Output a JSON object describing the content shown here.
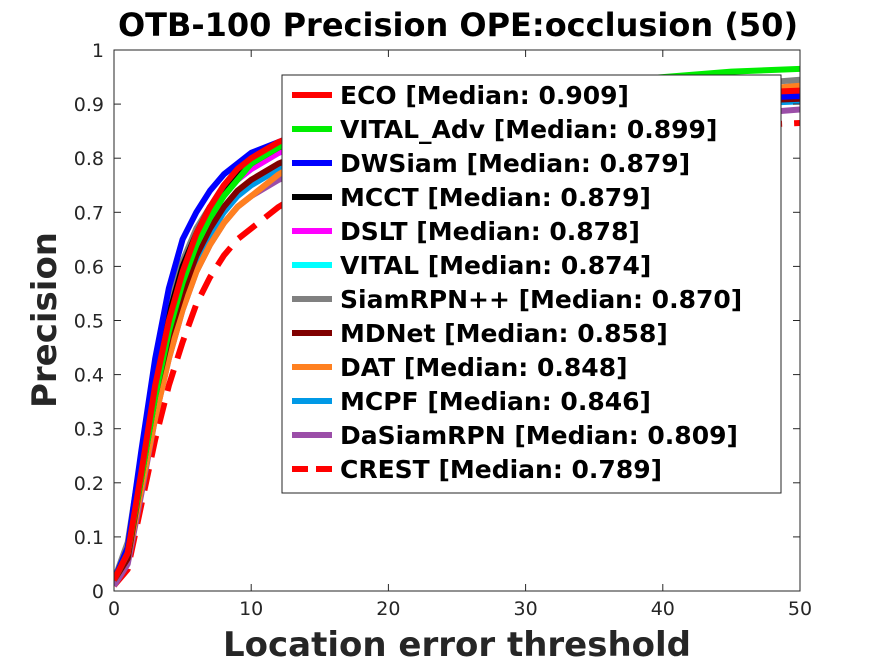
{
  "chart_data": {
    "type": "line",
    "title": "OTB-100 Precision OPE:occlusion (50)",
    "xlabel": "Location error threshold",
    "ylabel": "Precision",
    "xlim": [
      0,
      50
    ],
    "ylim": [
      0,
      1
    ],
    "xticks": [
      0,
      10,
      20,
      30,
      40,
      50
    ],
    "yticks": [
      0,
      0.1,
      0.2,
      0.3,
      0.4,
      0.5,
      0.6,
      0.7,
      0.8,
      0.9,
      1
    ],
    "grid": false,
    "legend_position": "top-right",
    "x": [
      0,
      1,
      2,
      3,
      4,
      5,
      6,
      7,
      8,
      9,
      10,
      12,
      14,
      16,
      18,
      20,
      25,
      30,
      35,
      40,
      45,
      50
    ],
    "series": [
      {
        "name": "ECO [Median: 0.909]",
        "color": "#ff0000",
        "dash": "solid",
        "values": [
          0.02,
          0.07,
          0.22,
          0.38,
          0.5,
          0.59,
          0.66,
          0.71,
          0.75,
          0.78,
          0.8,
          0.83,
          0.85,
          0.87,
          0.88,
          0.89,
          0.9,
          0.905,
          0.91,
          0.915,
          0.92,
          0.925
        ]
      },
      {
        "name": "VITAL_Adv [Median: 0.899]",
        "color": "#00ee00",
        "dash": "solid",
        "values": [
          0.02,
          0.07,
          0.21,
          0.36,
          0.48,
          0.57,
          0.64,
          0.69,
          0.73,
          0.76,
          0.79,
          0.82,
          0.85,
          0.87,
          0.88,
          0.89,
          0.91,
          0.93,
          0.94,
          0.95,
          0.96,
          0.965
        ]
      },
      {
        "name": "DWSiam [Median: 0.879]",
        "color": "#0000ff",
        "dash": "solid",
        "values": [
          0.02,
          0.08,
          0.26,
          0.43,
          0.56,
          0.65,
          0.7,
          0.74,
          0.77,
          0.79,
          0.81,
          0.83,
          0.85,
          0.86,
          0.87,
          0.875,
          0.885,
          0.895,
          0.9,
          0.905,
          0.91,
          0.915
        ]
      },
      {
        "name": "MCCT [Median: 0.879]",
        "color": "#000000",
        "dash": "solid",
        "values": [
          0.02,
          0.07,
          0.23,
          0.39,
          0.51,
          0.6,
          0.66,
          0.71,
          0.74,
          0.77,
          0.79,
          0.82,
          0.84,
          0.85,
          0.86,
          0.87,
          0.885,
          0.895,
          0.9,
          0.905,
          0.91,
          0.915
        ]
      },
      {
        "name": "DSLT [Median: 0.878]",
        "color": "#ff00ff",
        "dash": "solid",
        "values": [
          0.02,
          0.07,
          0.23,
          0.38,
          0.5,
          0.59,
          0.65,
          0.7,
          0.74,
          0.76,
          0.78,
          0.81,
          0.83,
          0.85,
          0.86,
          0.87,
          0.88,
          0.89,
          0.9,
          0.905,
          0.91,
          0.915
        ]
      },
      {
        "name": "VITAL [Median: 0.874]",
        "color": "#00ffff",
        "dash": "solid",
        "values": [
          0.02,
          0.07,
          0.22,
          0.37,
          0.49,
          0.58,
          0.64,
          0.69,
          0.73,
          0.76,
          0.78,
          0.81,
          0.83,
          0.84,
          0.85,
          0.86,
          0.88,
          0.89,
          0.9,
          0.905,
          0.91,
          0.92
        ]
      },
      {
        "name": "SiamRPN++ [Median: 0.870]",
        "color": "#808080",
        "dash": "solid",
        "values": [
          0.02,
          0.09,
          0.25,
          0.41,
          0.53,
          0.61,
          0.67,
          0.71,
          0.74,
          0.76,
          0.78,
          0.81,
          0.83,
          0.84,
          0.85,
          0.86,
          0.88,
          0.9,
          0.91,
          0.92,
          0.935,
          0.945
        ]
      },
      {
        "name": "MDNet [Median: 0.858]",
        "color": "#800000",
        "dash": "solid",
        "values": [
          0.02,
          0.06,
          0.21,
          0.36,
          0.47,
          0.55,
          0.62,
          0.67,
          0.71,
          0.74,
          0.76,
          0.79,
          0.81,
          0.83,
          0.84,
          0.85,
          0.87,
          0.88,
          0.89,
          0.9,
          0.905,
          0.91
        ]
      },
      {
        "name": "DAT [Median: 0.848]",
        "color": "#ff8020",
        "dash": "solid",
        "values": [
          0.02,
          0.06,
          0.19,
          0.32,
          0.43,
          0.52,
          0.59,
          0.64,
          0.68,
          0.71,
          0.73,
          0.77,
          0.8,
          0.82,
          0.83,
          0.84,
          0.86,
          0.88,
          0.89,
          0.9,
          0.92,
          0.935
        ]
      },
      {
        "name": "MCPF [Median: 0.846]",
        "color": "#0099e6",
        "dash": "solid",
        "values": [
          0.02,
          0.06,
          0.2,
          0.34,
          0.45,
          0.54,
          0.61,
          0.66,
          0.7,
          0.73,
          0.75,
          0.78,
          0.8,
          0.82,
          0.83,
          0.84,
          0.86,
          0.87,
          0.88,
          0.89,
          0.9,
          0.905
        ]
      },
      {
        "name": "DaSiamRPN [Median: 0.809]",
        "color": "#9b4ea8",
        "dash": "solid",
        "values": [
          0.01,
          0.05,
          0.18,
          0.32,
          0.43,
          0.52,
          0.59,
          0.64,
          0.68,
          0.71,
          0.73,
          0.76,
          0.78,
          0.79,
          0.8,
          0.81,
          0.83,
          0.85,
          0.86,
          0.87,
          0.88,
          0.89
        ]
      },
      {
        "name": "CREST [Median: 0.789]",
        "color": "#ff0000",
        "dash": "dashed",
        "values": [
          0.01,
          0.04,
          0.16,
          0.28,
          0.38,
          0.46,
          0.53,
          0.58,
          0.62,
          0.65,
          0.67,
          0.71,
          0.74,
          0.76,
          0.78,
          0.79,
          0.81,
          0.83,
          0.84,
          0.85,
          0.86,
          0.865
        ]
      }
    ]
  }
}
